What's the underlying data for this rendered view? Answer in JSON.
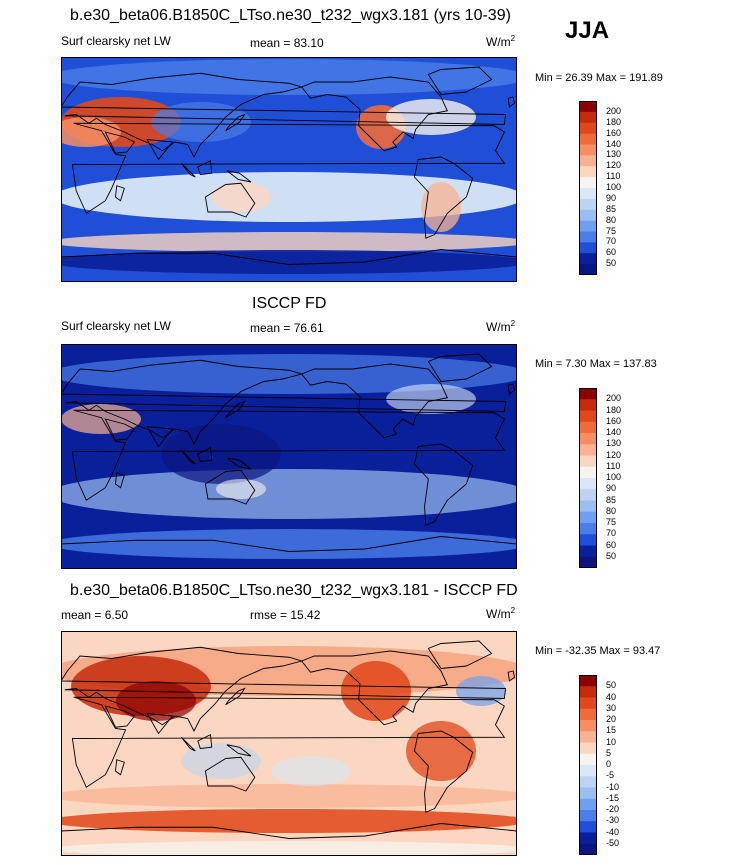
{
  "figure": {
    "season": "JJA",
    "panels": [
      {
        "title": "b.e30_beta06.B1850C_LTso.ne30_t232_wgx3.181 (yrs 10-39)",
        "left_label": "Surf clearsky net LW",
        "center_label": "mean =  83.10",
        "units": "W/m",
        "units_sup": "2",
        "minmax": "Min =  26.39 Max = 191.89",
        "colorbar_labels": [
          "200",
          "180",
          "160",
          "140",
          "130",
          "120",
          "110",
          "100",
          "90",
          "85",
          "80",
          "75",
          "70",
          "60",
          "50"
        ]
      },
      {
        "title": "ISCCP FD",
        "left_label": "Surf clearsky net LW",
        "center_label": "mean =  76.61",
        "units": "W/m",
        "units_sup": "2",
        "minmax": "Min =   7.30 Max = 137.83",
        "colorbar_labels": [
          "200",
          "180",
          "160",
          "140",
          "130",
          "120",
          "110",
          "100",
          "90",
          "85",
          "80",
          "75",
          "70",
          "60",
          "50"
        ]
      },
      {
        "title": "b.e30_beta06.B1850C_LTso.ne30_t232_wgx3.181 - ISCCP FD",
        "left_label": "mean =   6.50",
        "center_label": "rmse =  15.42",
        "units": "W/m",
        "units_sup": "2",
        "minmax": "Min = -32.35 Max =  93.47",
        "colorbar_labels": [
          "50",
          "40",
          "30",
          "20",
          "15",
          "10",
          "5",
          "0",
          "-5",
          "-10",
          "-15",
          "-20",
          "-30",
          "-40",
          "-50"
        ]
      }
    ]
  },
  "colors": {
    "abs_scale": [
      "#8b0000",
      "#c62a0c",
      "#e0471a",
      "#ef6a3c",
      "#f58e64",
      "#f9b393",
      "#fbd6c0",
      "#f7f3ee",
      "#d9e7f6",
      "#bcd4f1",
      "#9abef0",
      "#6f9ff0",
      "#4a7ee8",
      "#1f4fd6",
      "#0a1f9a",
      "#0b1580"
    ],
    "diff_scale": [
      "#8b0000",
      "#c62a0c",
      "#e0471a",
      "#ef6a3c",
      "#f58e64",
      "#f9b393",
      "#fbd6c0",
      "#f7f3ee",
      "#d9e7f6",
      "#bcd4f1",
      "#9abef0",
      "#6f9ff0",
      "#4a7ee8",
      "#1f4fd6",
      "#0a1f9a",
      "#0b1580"
    ]
  },
  "chart_data": [
    {
      "type": "heatmap",
      "title": "b.e30_beta06.B1850C_LTso.ne30_t232_wgx3.181 (yrs 10-39)",
      "variable": "Surf clearsky net LW",
      "units": "W/m2",
      "season": "JJA",
      "mean": 83.1,
      "min": 26.39,
      "max": 191.89,
      "contour_levels": [
        50,
        60,
        70,
        75,
        80,
        85,
        90,
        100,
        110,
        120,
        130,
        140,
        160,
        180,
        200
      ]
    },
    {
      "type": "heatmap",
      "title": "ISCCP FD",
      "variable": "Surf clearsky net LW",
      "units": "W/m2",
      "mean": 76.61,
      "min": 7.3,
      "max": 137.83,
      "contour_levels": [
        50,
        60,
        70,
        75,
        80,
        85,
        90,
        100,
        110,
        120,
        130,
        140,
        160,
        180,
        200
      ]
    },
    {
      "type": "heatmap",
      "title": "b.e30_beta06.B1850C_LTso.ne30_t232_wgx3.181 - ISCCP FD",
      "units": "W/m2",
      "mean": 6.5,
      "rmse": 15.42,
      "min": -32.35,
      "max": 93.47,
      "contour_levels": [
        -50,
        -40,
        -30,
        -20,
        -15,
        -10,
        -5,
        0,
        5,
        10,
        15,
        20,
        30,
        40,
        50
      ]
    }
  ]
}
